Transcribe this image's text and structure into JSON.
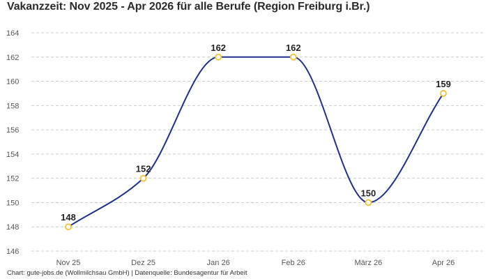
{
  "chart_data": {
    "type": "line",
    "title": "Vakanzzeit: Nov 2025 - Apr 2026 für alle Berufe (Region Freiburg i.Br.)",
    "categories": [
      "Nov 25",
      "Dez 25",
      "Jan 26",
      "Feb 26",
      "März 26",
      "Apr 26"
    ],
    "values": [
      148,
      152,
      162,
      162,
      150,
      159
    ],
    "data_labels": [
      "148",
      "152",
      "162",
      "162",
      "150",
      "159"
    ],
    "xlabel": "",
    "ylabel": "",
    "ylim": [
      146,
      164
    ],
    "y_ticks": [
      "146",
      "148",
      "150",
      "152",
      "154",
      "156",
      "158",
      "160",
      "162",
      "164"
    ],
    "grid": "horizontal dashed",
    "smooth": true,
    "legend": "none",
    "colors": {
      "line": "#1f2f8f",
      "marker_stroke": "#f2c230",
      "marker_fill": "#ffffff",
      "grid": "#cccccc"
    }
  },
  "footer": "Chart: gute-jobs.de (Wollmilchsau GmbH) | Datenquelle: Bundesagentur für Arbeit"
}
